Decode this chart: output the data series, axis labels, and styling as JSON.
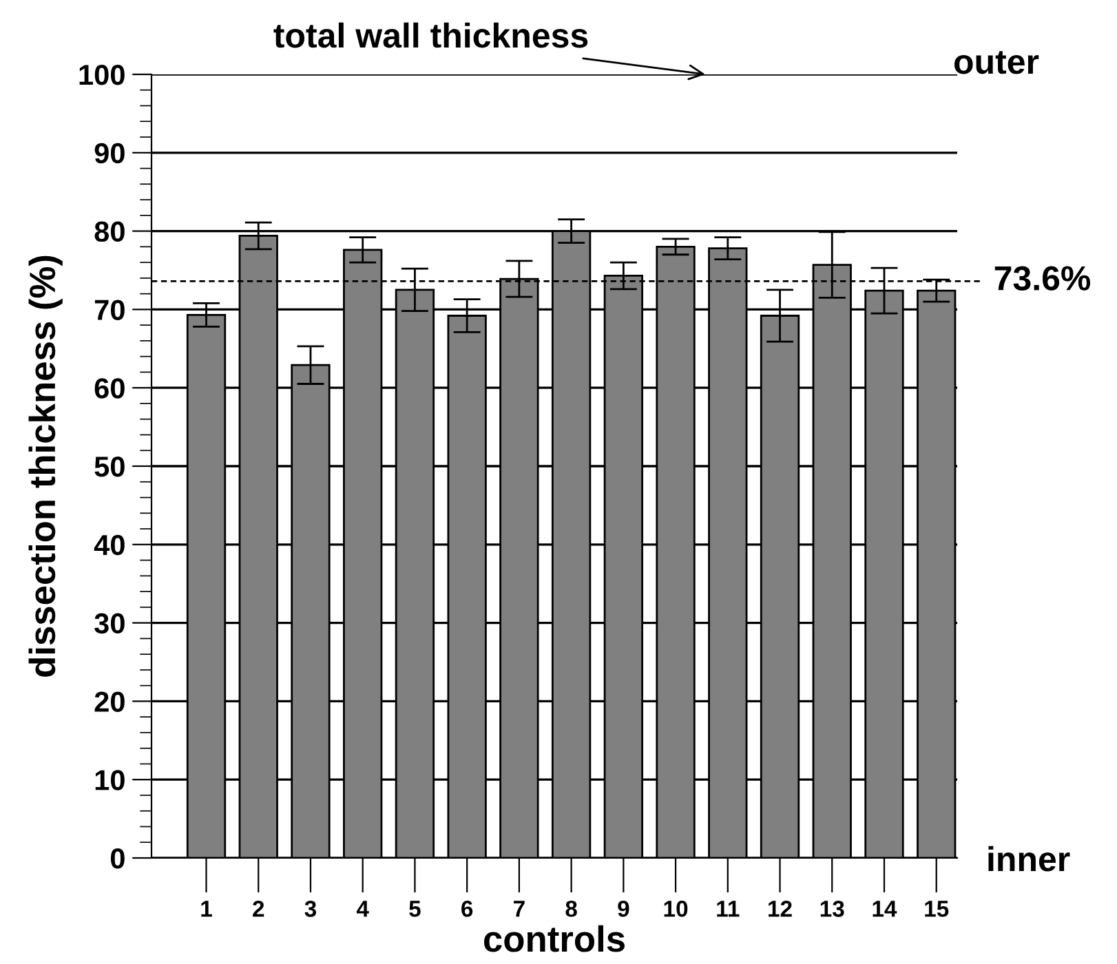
{
  "chart_data": {
    "type": "bar",
    "xlabel": "controls",
    "ylabel": "dissection thickness (%)",
    "categories": [
      "1",
      "2",
      "3",
      "4",
      "5",
      "6",
      "7",
      "8",
      "9",
      "10",
      "11",
      "12",
      "13",
      "14",
      "15"
    ],
    "values": [
      69.3,
      79.4,
      62.9,
      77.6,
      72.5,
      69.2,
      73.9,
      80.0,
      74.3,
      78.0,
      77.8,
      69.2,
      75.7,
      72.4,
      72.4
    ],
    "errors": [
      1.5,
      1.7,
      2.4,
      1.6,
      2.7,
      2.1,
      2.3,
      1.5,
      1.7,
      1.0,
      1.4,
      3.3,
      4.2,
      2.9,
      1.4
    ],
    "color": "#808080",
    "ylim": [
      0,
      100
    ],
    "yticks": [
      0,
      10,
      20,
      30,
      40,
      50,
      60,
      70,
      80,
      90,
      100
    ],
    "grid": "y",
    "ref_lines": [
      {
        "axis": "y",
        "value": 73.6,
        "label": "73.6%",
        "line_style": "dashed",
        "color": "#000000"
      }
    ],
    "annotations": [
      "total wall thickness",
      "outer",
      "inner"
    ]
  }
}
